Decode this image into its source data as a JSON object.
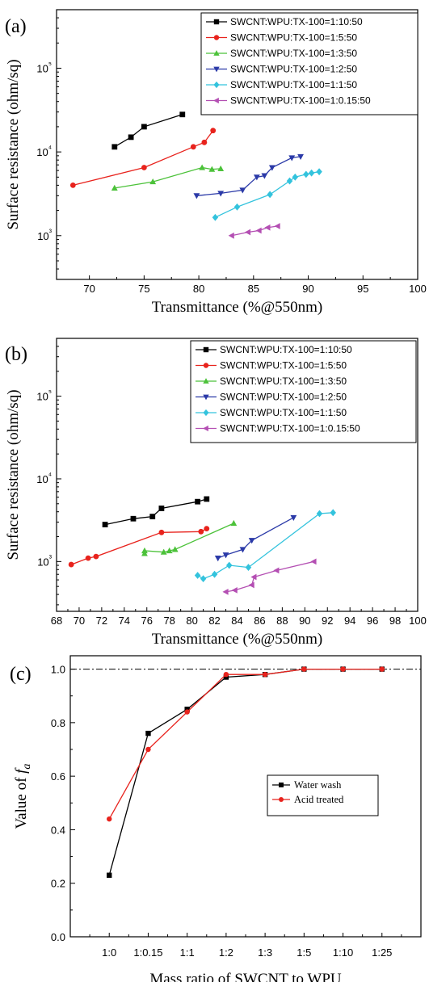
{
  "colors": {
    "black": "#000000",
    "red": "#e8231d",
    "green": "#4cc23a",
    "blue": "#2b3aa8",
    "cyan": "#33c3dd",
    "purple": "#b44fb3"
  },
  "chart_data": [
    {
      "panel": "(a)",
      "type": "line",
      "xlabel": "Transmittance (%@550nm)",
      "ylabel": "Surface resistance (ohm/sq)",
      "xlim": [
        67,
        100
      ],
      "ylim": [
        300,
        500000
      ],
      "yscale": "log",
      "xticks": [
        70,
        75,
        80,
        85,
        90,
        95,
        100
      ],
      "yticks": [
        {
          "value": 1000,
          "label": "10³"
        },
        {
          "value": 10000,
          "label": "10⁴"
        },
        {
          "value": 100000,
          "label": "10⁵"
        }
      ],
      "legend_position": "top-right",
      "series": [
        {
          "name": "SWCNT:WPU:TX-100=1:10:50",
          "color": "#000000",
          "marker": "square",
          "x": [
            72.3,
            73.8,
            75.0,
            78.5
          ],
          "y": [
            11500,
            15000,
            20000,
            28000
          ]
        },
        {
          "name": "SWCNT:WPU:TX-100=1:5:50",
          "color": "#e8231d",
          "marker": "circle",
          "x": [
            68.5,
            75.0,
            79.5,
            80.5,
            81.3
          ],
          "y": [
            4000,
            6500,
            11500,
            13000,
            18000
          ]
        },
        {
          "name": "SWCNT:WPU:TX-100=1:3:50",
          "color": "#4cc23a",
          "marker": "triangle-up",
          "x": [
            72.3,
            75.8,
            80.3,
            81.2,
            82.0
          ],
          "y": [
            3700,
            4400,
            6500,
            6200,
            6300
          ]
        },
        {
          "name": "SWCNT:WPU:TX-100=1:2:50",
          "color": "#2b3aa8",
          "marker": "triangle-down",
          "x": [
            79.8,
            82.0,
            84.0,
            85.3,
            86.0,
            86.7,
            88.5,
            89.3
          ],
          "y": [
            3000,
            3200,
            3500,
            5000,
            5200,
            6500,
            8500,
            8800
          ]
        },
        {
          "name": "SWCNT:WPU:TX-100=1:1:50",
          "color": "#33c3dd",
          "marker": "diamond",
          "x": [
            81.5,
            83.5,
            86.5,
            88.3,
            88.8,
            89.8,
            90.3,
            91.0
          ],
          "y": [
            1650,
            2200,
            3100,
            4500,
            5000,
            5400,
            5600,
            5800
          ]
        },
        {
          "name": "SWCNT:WPU:TX-100=1:0.15:50",
          "color": "#b44fb3",
          "marker": "triangle-left",
          "x": [
            83.0,
            84.5,
            85.5,
            86.3,
            87.2
          ],
          "y": [
            1000,
            1100,
            1150,
            1250,
            1300
          ]
        }
      ]
    },
    {
      "panel": "(b)",
      "type": "line",
      "xlabel": "Transmittance (%@550nm)",
      "ylabel": "Surface resistance (ohm/sq)",
      "xlim": [
        68,
        100
      ],
      "ylim": [
        250,
        500000
      ],
      "yscale": "log",
      "xticks": [
        68,
        70,
        72,
        74,
        76,
        78,
        80,
        82,
        84,
        86,
        88,
        90,
        92,
        94,
        96,
        98,
        100
      ],
      "yticks": [
        {
          "value": 1000,
          "label": "10³"
        },
        {
          "value": 10000,
          "label": "10⁴"
        },
        {
          "value": 100000,
          "label": "10⁵"
        }
      ],
      "legend_position": "top-right",
      "series": [
        {
          "name": "SWCNT:WPU:TX-100=1:10:50",
          "color": "#000000",
          "marker": "square",
          "x": [
            72.3,
            74.8,
            76.5,
            77.3,
            80.5,
            81.3
          ],
          "y": [
            2800,
            3300,
            3500,
            4400,
            5300,
            5700
          ]
        },
        {
          "name": "SWCNT:WPU:TX-100=1:5:50",
          "color": "#e8231d",
          "marker": "circle",
          "x": [
            69.3,
            70.8,
            71.5,
            77.3,
            80.8,
            81.3
          ],
          "y": [
            920,
            1100,
            1150,
            2250,
            2300,
            2500
          ]
        },
        {
          "name": "SWCNT:WPU:TX-100=1:3:50",
          "color": "#4cc23a",
          "marker": "triangle-up",
          "x": [
            75.8,
            75.8,
            77.5,
            78.0,
            78.5,
            83.7
          ],
          "y": [
            1250,
            1350,
            1300,
            1350,
            1400,
            2900
          ]
        },
        {
          "name": "SWCNT:WPU:TX-100=1:2:50",
          "color": "#2b3aa8",
          "marker": "triangle-down",
          "x": [
            82.3,
            83.0,
            84.5,
            85.3,
            89.0
          ],
          "y": [
            1100,
            1200,
            1400,
            1800,
            3400
          ]
        },
        {
          "name": "SWCNT:WPU:TX-100=1:1:50",
          "color": "#33c3dd",
          "marker": "diamond",
          "x": [
            80.5,
            81.0,
            82.0,
            83.3,
            85.0,
            91.3,
            92.5
          ],
          "y": [
            680,
            620,
            700,
            900,
            850,
            3800,
            3900
          ]
        },
        {
          "name": "SWCNT:WPU:TX-100=1:0.15:50",
          "color": "#b44fb3",
          "marker": "triangle-left",
          "x": [
            83.0,
            83.8,
            85.3,
            85.5,
            87.5,
            90.8
          ],
          "y": [
            430,
            450,
            520,
            650,
            780,
            1000
          ]
        }
      ]
    },
    {
      "panel": "(c)",
      "type": "line",
      "xlabel": "Mass ratio of SWCNT to WPU",
      "ylabel_prefix": "Value of ",
      "ylabel_var": "f",
      "ylabel_sub": "a",
      "categories": [
        "1:0",
        "1:0.15",
        "1:1",
        "1:2",
        "1:3",
        "1:5",
        "1:10",
        "1:25"
      ],
      "ylim": [
        0.0,
        1.05
      ],
      "yticks": [
        0.0,
        0.2,
        0.4,
        0.6,
        0.8,
        1.0
      ],
      "reference_line": 1.0,
      "legend_position": "center-right",
      "series": [
        {
          "name": "Water wash",
          "color": "#000000",
          "marker": "square",
          "values": [
            0.23,
            0.76,
            0.85,
            0.97,
            0.98,
            1.0,
            1.0,
            1.0
          ]
        },
        {
          "name": "Acid treated",
          "color": "#e8231d",
          "marker": "circle",
          "values": [
            0.44,
            0.7,
            0.84,
            0.98,
            0.98,
            1.0,
            1.0,
            1.0
          ]
        }
      ]
    }
  ]
}
